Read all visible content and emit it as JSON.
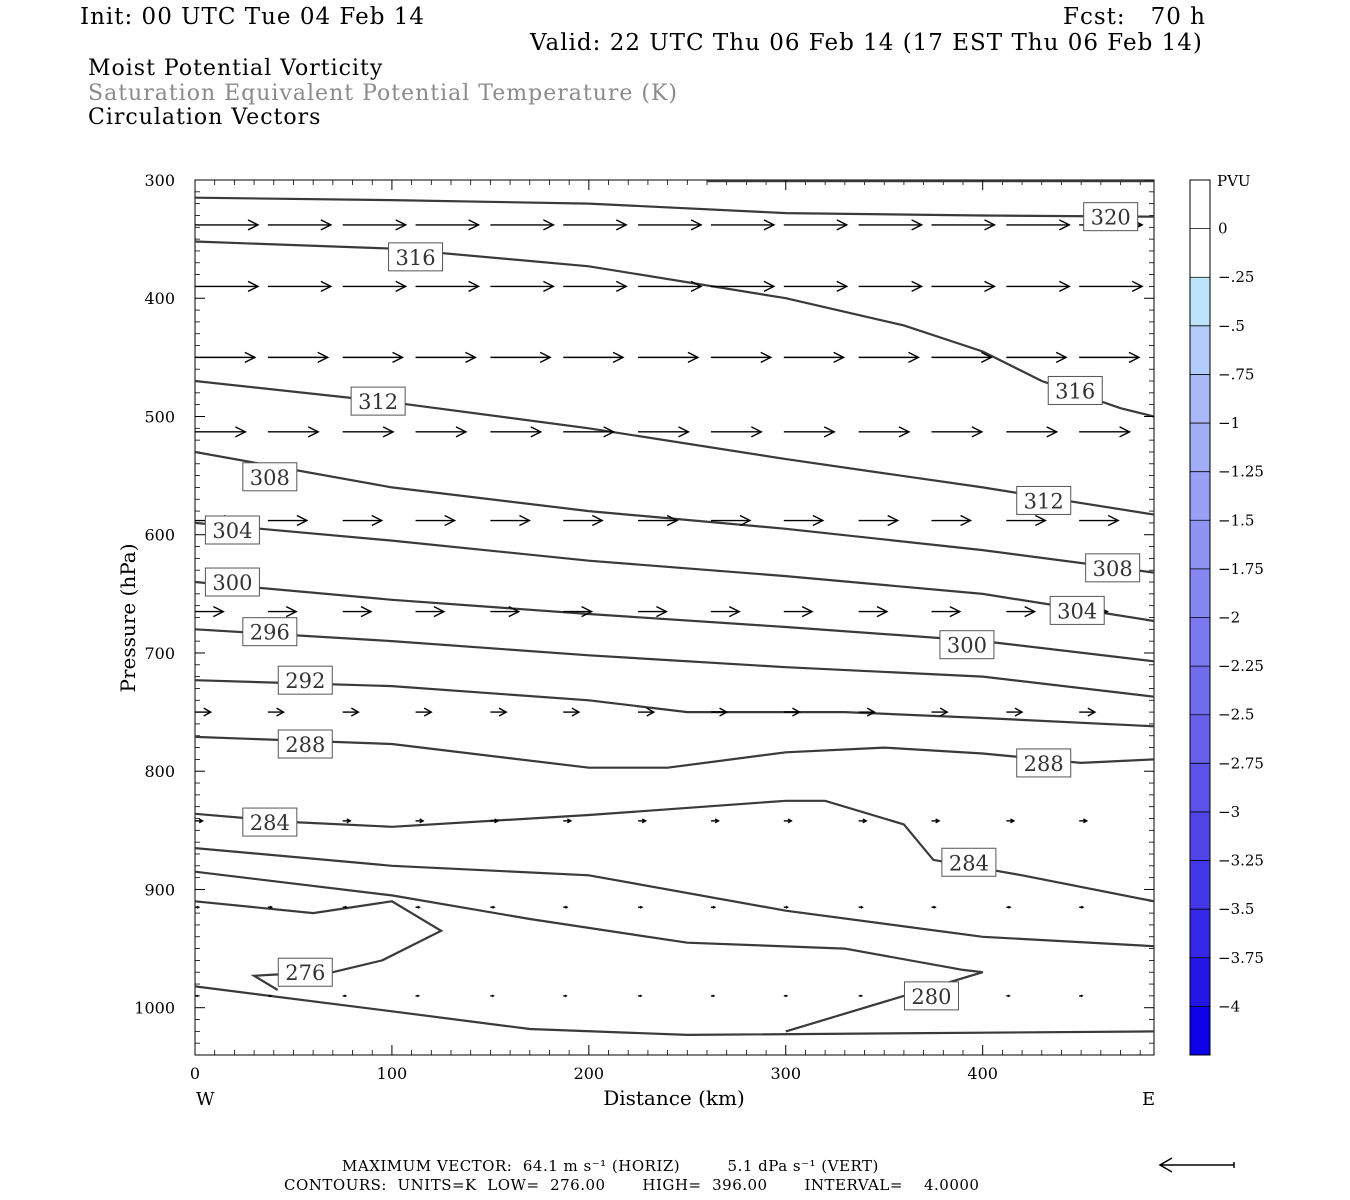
{
  "header": {
    "init": "Init: 00 UTC Tue 04 Feb 14",
    "fcst": "Fcst:   70 h",
    "valid": "Valid: 22 UTC Thu 06 Feb 14 (17 EST Thu 06 Feb 14)"
  },
  "fields": {
    "line1": "Moist Potential Vorticity",
    "line2": "Saturation Equivalent Potential Temperature (K)",
    "line3": "Circulation Vectors"
  },
  "footer": {
    "max_vector": "MAXIMUM VECTOR:  64.1 m s⁻¹ (HORIZ)         5.1 dPa s⁻¹ (VERT)",
    "contours": "CONTOURS:  UNITS=K  LOW=  276.00       HIGH=  396.00       INTERVAL=    4.0000"
  },
  "colors": {
    "contour": "#3a3a3a",
    "vector": "#000000",
    "box": "#555555"
  },
  "chart_data": {
    "type": "cross-section",
    "xlabel": "Distance (km)",
    "ylabel": "Pressure (hPa)",
    "xlim": [
      0,
      487
    ],
    "ylim": [
      1040,
      300
    ],
    "xticks": [
      0,
      100,
      200,
      300,
      400
    ],
    "yticks": [
      300,
      400,
      500,
      600,
      700,
      800,
      900,
      1000
    ],
    "x_end_labels": {
      "left": "W",
      "right": "E"
    },
    "contour_levels": [
      276,
      280,
      284,
      288,
      292,
      296,
      300,
      304,
      308,
      312,
      316,
      320
    ],
    "contours": [
      {
        "level": 320,
        "points": [
          [
            0,
            315
          ],
          [
            100,
            317
          ],
          [
            200,
            320
          ],
          [
            300,
            328
          ],
          [
            400,
            330
          ],
          [
            487,
            331
          ]
        ]
      },
      {
        "level": 320,
        "points": [
          [
            260,
            301
          ],
          [
            487,
            301
          ]
        ]
      },
      {
        "level": 316,
        "points": [
          [
            0,
            352
          ],
          [
            100,
            358
          ],
          [
            200,
            373
          ],
          [
            300,
            400
          ],
          [
            360,
            423
          ],
          [
            400,
            445
          ],
          [
            430,
            470
          ],
          [
            470,
            493
          ],
          [
            487,
            500
          ]
        ]
      },
      {
        "level": 312,
        "points": [
          [
            0,
            470
          ],
          [
            100,
            488
          ],
          [
            200,
            510
          ],
          [
            300,
            536
          ],
          [
            400,
            560
          ],
          [
            487,
            583
          ]
        ]
      },
      {
        "level": 308,
        "points": [
          [
            0,
            530
          ],
          [
            100,
            560
          ],
          [
            200,
            580
          ],
          [
            300,
            595
          ],
          [
            400,
            613
          ],
          [
            487,
            632
          ]
        ]
      },
      {
        "level": 304,
        "points": [
          [
            0,
            590
          ],
          [
            100,
            605
          ],
          [
            200,
            622
          ],
          [
            300,
            635
          ],
          [
            400,
            650
          ],
          [
            487,
            673
          ]
        ]
      },
      {
        "level": 300,
        "points": [
          [
            0,
            640
          ],
          [
            100,
            655
          ],
          [
            200,
            667
          ],
          [
            300,
            678
          ],
          [
            400,
            690
          ],
          [
            487,
            707
          ]
        ]
      },
      {
        "level": 296,
        "points": [
          [
            0,
            680
          ],
          [
            100,
            690
          ],
          [
            200,
            702
          ],
          [
            300,
            712
          ],
          [
            400,
            720
          ],
          [
            487,
            737
          ]
        ]
      },
      {
        "level": 292,
        "points": [
          [
            0,
            723
          ],
          [
            100,
            728
          ],
          [
            200,
            740
          ],
          [
            250,
            750
          ],
          [
            330,
            750
          ],
          [
            400,
            755
          ],
          [
            487,
            762
          ]
        ]
      },
      {
        "level": 288,
        "points": [
          [
            0,
            771
          ],
          [
            100,
            777
          ],
          [
            200,
            797
          ],
          [
            240,
            797
          ],
          [
            300,
            784
          ],
          [
            350,
            780
          ],
          [
            400,
            785
          ],
          [
            450,
            793
          ],
          [
            487,
            790
          ]
        ]
      },
      {
        "level": 284,
        "points": [
          [
            0,
            836
          ],
          [
            50,
            843
          ],
          [
            100,
            847
          ],
          [
            200,
            837
          ],
          [
            300,
            825
          ],
          [
            320,
            825
          ],
          [
            360,
            845
          ],
          [
            375,
            875
          ],
          [
            420,
            888
          ],
          [
            487,
            910
          ]
        ]
      },
      {
        "level": 284,
        "points": [
          [
            0,
            865
          ],
          [
            100,
            880
          ],
          [
            200,
            888
          ],
          [
            300,
            918
          ],
          [
            400,
            940
          ],
          [
            487,
            948
          ]
        ]
      },
      {
        "level": 280,
        "points": [
          [
            0,
            885
          ],
          [
            100,
            905
          ],
          [
            170,
            925
          ],
          [
            250,
            945
          ],
          [
            330,
            950
          ],
          [
            390,
            968
          ],
          [
            400,
            970
          ],
          [
            300,
            1020
          ]
        ]
      },
      {
        "level": 276,
        "points": [
          [
            0,
            982
          ],
          [
            100,
            1003
          ],
          [
            170,
            1018
          ],
          [
            250,
            1023
          ],
          [
            487,
            1020
          ]
        ]
      },
      {
        "level": 276,
        "points": [
          [
            0,
            910
          ],
          [
            60,
            920
          ],
          [
            100,
            910
          ],
          [
            125,
            935
          ],
          [
            95,
            960
          ],
          [
            70,
            970
          ],
          [
            40,
            972
          ],
          [
            30,
            973
          ],
          [
            42,
            985
          ]
        ]
      }
    ],
    "contour_labels": [
      {
        "level": 320,
        "x": 465,
        "p": 331
      },
      {
        "level": 316,
        "x": 112,
        "p": 365
      },
      {
        "level": 316,
        "x": 447,
        "p": 478
      },
      {
        "level": 312,
        "x": 93,
        "p": 487
      },
      {
        "level": 312,
        "x": 431,
        "p": 571
      },
      {
        "level": 308,
        "x": 38,
        "p": 551
      },
      {
        "level": 308,
        "x": 466,
        "p": 628
      },
      {
        "level": 304,
        "x": 19,
        "p": 596
      },
      {
        "level": 304,
        "x": 448,
        "p": 664
      },
      {
        "level": 300,
        "x": 19,
        "p": 640
      },
      {
        "level": 300,
        "x": 392,
        "p": 693
      },
      {
        "level": 296,
        "x": 38,
        "p": 682
      },
      {
        "level": 292,
        "x": 56,
        "p": 723
      },
      {
        "level": 288,
        "x": 56,
        "p": 777
      },
      {
        "level": 288,
        "x": 431,
        "p": 793
      },
      {
        "level": 284,
        "x": 38,
        "p": 843
      },
      {
        "level": 284,
        "x": 393,
        "p": 877
      },
      {
        "level": 280,
        "x": 374,
        "p": 990
      },
      {
        "level": 276,
        "x": 56,
        "p": 970
      }
    ],
    "vector_rows": [
      {
        "p": 338,
        "len": 1.0
      },
      {
        "p": 390,
        "len": 1.0
      },
      {
        "p": 450,
        "len": 0.95
      },
      {
        "p": 513,
        "len": 0.8
      },
      {
        "p": 588,
        "len": 0.62
      },
      {
        "p": 665,
        "len": 0.45
      },
      {
        "p": 750,
        "len": 0.25
      },
      {
        "p": 842,
        "len": 0.12
      },
      {
        "p": 915,
        "len": 0.06
      },
      {
        "p": 990,
        "len": 0.03
      }
    ],
    "vector_x": [
      0,
      37,
      75,
      112,
      150,
      187,
      225,
      262,
      299,
      337,
      374,
      412,
      449
    ],
    "max_vector": {
      "horizontal": 64.1,
      "horizontal_units": "m s-1",
      "vertical": 5.1,
      "vertical_units": "dPa s-1"
    },
    "contour_info": {
      "units": "K",
      "low": 276.0,
      "high": 396.0,
      "interval": 4.0
    },
    "colorbar": {
      "title": "PVU",
      "labels": [
        "0",
        "-.25",
        "-.5",
        "-.75",
        "-1",
        "-1.25",
        "-1.5",
        "-1.75",
        "-2",
        "-2.25",
        "-2.5",
        "-2.75",
        "-3",
        "-3.25",
        "-3.5",
        "-3.75",
        "-4"
      ],
      "colors": [
        "#ffffff",
        "#ffffff",
        "#bde4fa",
        "#b4ccfa",
        "#aab8f8",
        "#a1acf6",
        "#97a0f5",
        "#8d93f3",
        "#8486f1",
        "#7a79ef",
        "#706cee",
        "#6660ec",
        "#5b53ea",
        "#4f45e9",
        "#4338e8",
        "#3529e7",
        "#2415e7",
        "#0e00e8"
      ]
    }
  }
}
